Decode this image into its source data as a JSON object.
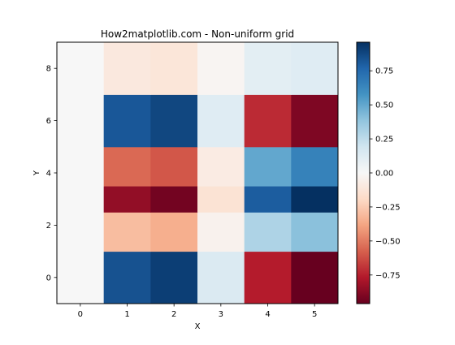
{
  "chart_data": {
    "type": "heatmap",
    "title": "How2matplotlib.com - Non-uniform grid",
    "xlabel": "X",
    "ylabel": "Y",
    "xlim": [
      -0.5,
      5.5
    ],
    "ylim": [
      -1,
      9
    ],
    "x_edges": [
      -0.5,
      0.5,
      1.5,
      2.5,
      3.5,
      4.5,
      5.5
    ],
    "y_edges": [
      -1,
      1,
      2.5,
      3.5,
      5,
      7,
      9
    ],
    "x_ticks": [
      0,
      1,
      2,
      3,
      4,
      5
    ],
    "y_ticks": [
      0,
      2,
      4,
      6,
      8
    ],
    "values": [
      [
        0.0,
        0.84,
        0.91,
        0.14,
        -0.76,
        -0.96
      ],
      [
        0.0,
        -0.3,
        -0.35,
        -0.04,
        0.3,
        0.4
      ],
      [
        0.0,
        -0.85,
        -0.93,
        -0.14,
        0.8,
        0.96
      ],
      [
        0.0,
        -0.55,
        -0.6,
        -0.08,
        0.5,
        0.65
      ],
      [
        0.0,
        0.82,
        0.88,
        0.12,
        -0.72,
        -0.9
      ],
      [
        0.0,
        -0.1,
        -0.12,
        -0.02,
        0.1,
        0.12
      ]
    ],
    "colormap": "RdBu",
    "vmin": -0.96,
    "vmax": 0.96,
    "colorbar_ticks": [
      0.75,
      0.5,
      0.25,
      0.0,
      -0.25,
      -0.5,
      -0.75
    ],
    "colorbar_tick_labels": [
      "0.75",
      "0.50",
      "0.25",
      "0.00",
      "−0.25",
      "−0.50",
      "−0.75"
    ],
    "grid": false,
    "legend": "none"
  }
}
